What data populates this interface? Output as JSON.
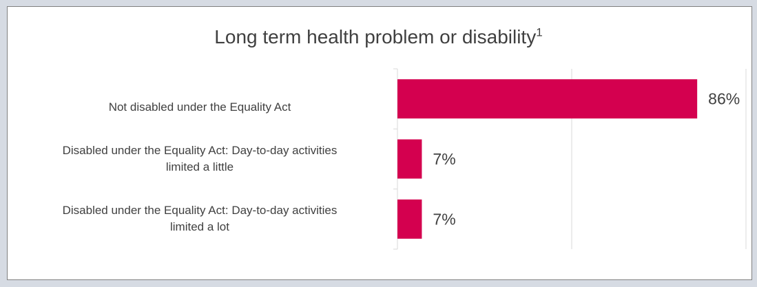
{
  "chart_data": {
    "type": "bar",
    "orientation": "horizontal",
    "title": "Long term health problem or disability",
    "title_superscript": "1",
    "categories": [
      "Not disabled under the Equality Act",
      "Disabled under the Equality Act: Day-to-day activities limited a little",
      "Disabled under the Equality Act: Day-to-day activities limited a lot"
    ],
    "category_lines": [
      [
        "Not disabled under the Equality Act"
      ],
      [
        "Disabled under the Equality Act: Day-to-day activities",
        "limited a little"
      ],
      [
        "Disabled under the Equality Act: Day-to-day activities",
        "limited a lot"
      ]
    ],
    "values": [
      86,
      7,
      7
    ],
    "value_labels": [
      "86%",
      "7%",
      "7%"
    ],
    "xlim": [
      0,
      100
    ],
    "grid": true,
    "legend": "none",
    "colors": {
      "bar": "#d4004f",
      "gridline": "#d9d9d9",
      "axis": "#d9d9d9"
    }
  }
}
